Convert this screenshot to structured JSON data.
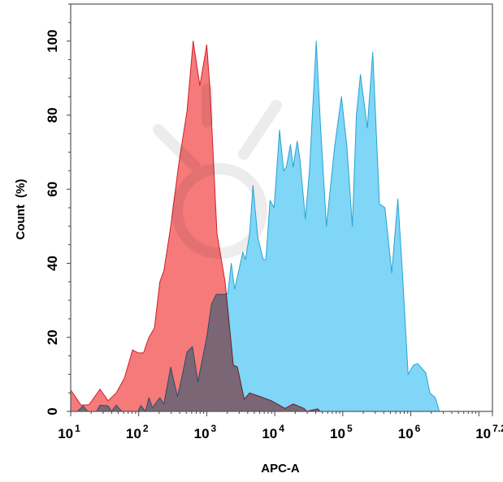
{
  "chart_data": {
    "type": "area",
    "title": "",
    "xlabel": "APC-A",
    "ylabel": "Count  (%)",
    "x_scale": "log10",
    "xlim_log10": [
      1,
      7.2
    ],
    "ylim": [
      0,
      110
    ],
    "x_ticks": [
      {
        "base": "10",
        "exp": "1",
        "value": 1
      },
      {
        "base": "10",
        "exp": "2",
        "value": 2
      },
      {
        "base": "10",
        "exp": "3",
        "value": 3
      },
      {
        "base": "10",
        "exp": "4",
        "value": 4
      },
      {
        "base": "10",
        "exp": "5",
        "value": 5
      },
      {
        "base": "10",
        "exp": "6",
        "value": 6
      },
      {
        "base": "10",
        "exp": "7.2",
        "value": 7.2
      }
    ],
    "y_ticks": [
      "0",
      "20",
      "40",
      "60",
      "80",
      "100"
    ],
    "grid": false,
    "legend": "none",
    "series": [
      {
        "color_fill": "#7fd6f6",
        "color_line": "#2aa2d2",
        "points_log10x_y": [
          [
            1.0,
            0
          ],
          [
            1.1,
            0
          ],
          [
            1.18,
            1.5
          ],
          [
            1.25,
            0
          ],
          [
            1.38,
            0
          ],
          [
            1.43,
            1.7
          ],
          [
            1.55,
            1.5
          ],
          [
            1.6,
            0
          ],
          [
            1.67,
            1.7
          ],
          [
            1.75,
            0
          ],
          [
            1.99,
            0
          ],
          [
            2.03,
            1.6
          ],
          [
            2.1,
            0
          ],
          [
            2.15,
            3.7
          ],
          [
            2.2,
            1
          ],
          [
            2.31,
            3.7
          ],
          [
            2.37,
            2
          ],
          [
            2.47,
            12
          ],
          [
            2.52,
            8
          ],
          [
            2.57,
            4
          ],
          [
            2.62,
            8
          ],
          [
            2.71,
            16
          ],
          [
            2.79,
            17.5
          ],
          [
            2.87,
            8
          ],
          [
            3.0,
            20
          ],
          [
            3.07,
            29
          ],
          [
            3.14,
            31.6
          ],
          [
            3.27,
            31.6
          ],
          [
            3.31,
            32
          ],
          [
            3.36,
            40
          ],
          [
            3.41,
            33
          ],
          [
            3.47,
            38
          ],
          [
            3.53,
            43
          ],
          [
            3.57,
            41
          ],
          [
            3.63,
            48
          ],
          [
            3.68,
            61
          ],
          [
            3.75,
            47
          ],
          [
            3.83,
            41
          ],
          [
            3.87,
            41
          ],
          [
            3.93,
            57
          ],
          [
            3.99,
            55
          ],
          [
            4.07,
            76
          ],
          [
            4.13,
            65
          ],
          [
            4.17,
            66
          ],
          [
            4.23,
            72
          ],
          [
            4.27,
            66
          ],
          [
            4.33,
            73
          ],
          [
            4.37,
            68
          ],
          [
            4.45,
            52
          ],
          [
            4.51,
            65
          ],
          [
            4.61,
            100
          ],
          [
            4.67,
            78
          ],
          [
            4.76,
            50
          ],
          [
            4.88,
            71.5
          ],
          [
            4.98,
            85
          ],
          [
            5.06,
            71.5
          ],
          [
            5.14,
            50
          ],
          [
            5.2,
            80
          ],
          [
            5.26,
            91
          ],
          [
            5.36,
            76.5
          ],
          [
            5.44,
            97
          ],
          [
            5.54,
            56
          ],
          [
            5.62,
            55
          ],
          [
            5.72,
            37.4
          ],
          [
            5.81,
            57.4
          ],
          [
            5.88,
            36.6
          ],
          [
            5.96,
            10
          ],
          [
            6.04,
            12.5
          ],
          [
            6.1,
            12.9
          ],
          [
            6.22,
            10.4
          ],
          [
            6.28,
            5
          ],
          [
            6.36,
            3.7
          ],
          [
            6.42,
            0
          ]
        ]
      },
      {
        "color_fill": "#f67a7a",
        "color_line": "#d0202c",
        "points_log10x_y": [
          [
            1.0,
            5.8
          ],
          [
            1.15,
            1.7
          ],
          [
            1.27,
            1.8
          ],
          [
            1.43,
            6
          ],
          [
            1.55,
            2.9
          ],
          [
            1.67,
            5
          ],
          [
            1.79,
            9
          ],
          [
            1.91,
            16.6
          ],
          [
            1.99,
            15.8
          ],
          [
            2.07,
            15.8
          ],
          [
            2.15,
            20
          ],
          [
            2.23,
            22.5
          ],
          [
            2.31,
            35
          ],
          [
            2.37,
            38
          ],
          [
            2.47,
            50
          ],
          [
            2.59,
            67
          ],
          [
            2.71,
            81
          ],
          [
            2.8,
            100
          ],
          [
            2.9,
            88
          ],
          [
            3.0,
            99
          ],
          [
            3.05,
            86.5
          ],
          [
            3.15,
            48
          ],
          [
            3.27,
            35
          ],
          [
            3.39,
            12.5
          ],
          [
            3.45,
            12
          ],
          [
            3.55,
            3.3
          ],
          [
            3.63,
            5
          ],
          [
            3.83,
            3.7
          ],
          [
            3.95,
            2.9
          ],
          [
            4.15,
            0.8
          ],
          [
            4.27,
            2
          ],
          [
            4.43,
            0.8
          ],
          [
            4.47,
            0
          ],
          [
            4.63,
            0.7
          ],
          [
            4.67,
            0
          ]
        ]
      }
    ]
  }
}
